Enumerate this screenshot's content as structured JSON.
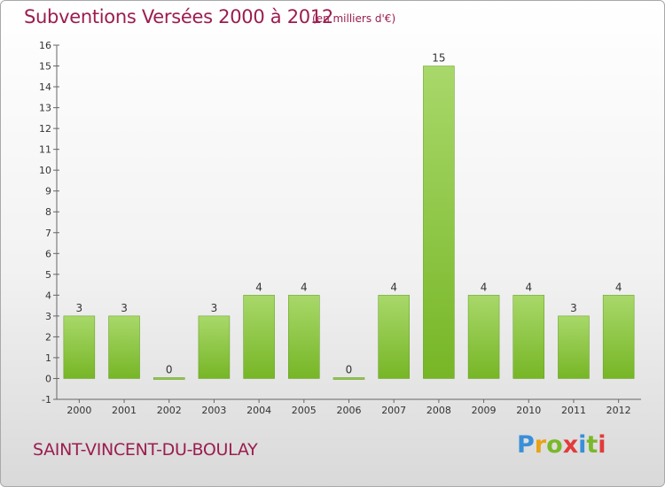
{
  "chart_data": {
    "type": "bar",
    "title": "Subventions Versées 2000 à 2012",
    "subtitle": "(en milliers d'€)",
    "categories": [
      "2000",
      "2001",
      "2002",
      "2003",
      "2004",
      "2005",
      "2006",
      "2007",
      "2008",
      "2009",
      "2010",
      "2011",
      "2012"
    ],
    "values": [
      3,
      3,
      0,
      3,
      4,
      4,
      0,
      4,
      15,
      4,
      4,
      3,
      4
    ],
    "value_labels": [
      "3",
      "3",
      "0",
      "3",
      "4",
      "4",
      "0",
      "4",
      "15",
      "4",
      "4",
      "3",
      "4"
    ],
    "y_ticks": [
      "-1",
      "0",
      "1",
      "2",
      "3",
      "4",
      "5",
      "6",
      "7",
      "8",
      "9",
      "10",
      "11",
      "12",
      "13",
      "14",
      "15",
      "16"
    ],
    "ylim": [
      -1,
      16
    ],
    "grid": false,
    "bar_color": "#77b626",
    "bar_color_light": "#a8d86a"
  },
  "footer": {
    "place": "SAINT-VINCENT-DU-BOULAY",
    "logo": [
      "P",
      "r",
      "o",
      "x",
      "i",
      "t",
      "i"
    ],
    "logo_colors": [
      "#3a8fd8",
      "#e8a316",
      "#7ab82a",
      "#e23b3b",
      "#3a8fd8",
      "#7ab82a",
      "#e23b3b"
    ]
  }
}
